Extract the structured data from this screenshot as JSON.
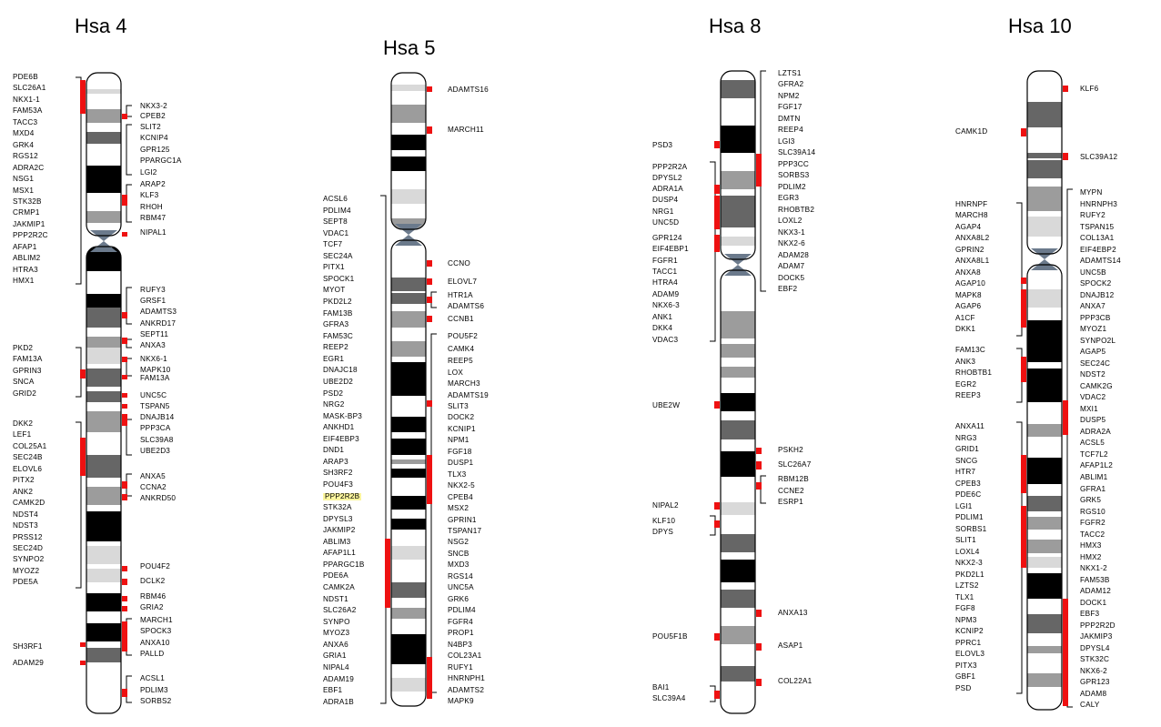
{
  "colors": {
    "marker": "#ee1111",
    "centromere": "#6b7a8c",
    "highlight": "#fbf59e",
    "band_light": "#d9d9d9",
    "band_medium": "#9c9c9c",
    "band_dark": "#666666",
    "band_black": "#000000"
  },
  "chromosomes": [
    {
      "title": "Hsa 4",
      "left_genes": [
        "PDE6B",
        "SLC26A1",
        "NKX1-1",
        "FAM53A",
        "TACC3",
        "MXD4",
        "GRK4",
        "RGS12",
        "ADRA2C",
        "NSG1",
        "MSX1",
        "STK32B",
        "CRMP1",
        "JAKMIP1",
        "PPP2R2C",
        "AFAP1",
        "ABLIM2",
        "HTRA3",
        "HMX1",
        "PKD2",
        "FAM13A",
        "GPRIN3",
        "SNCA",
        "GRID2",
        "DKK2",
        "LEF1",
        "COL25A1",
        "SEC24B",
        "ELOVL6",
        "PITX2",
        "ANK2",
        "CAMK2D",
        "NDST4",
        "NDST3",
        "PRSS12",
        "SEC24D",
        "SYNPO2",
        "MYOZ2",
        "PDE5A",
        "SH3RF1",
        "ADAM29"
      ],
      "right_genes": [
        "NKX3-2",
        "CPEB2",
        "SLIT2",
        "KCNIP4",
        "GPR125",
        "PPARGC1A",
        "LGI2",
        "ARAP2",
        "KLF3",
        "RHOH",
        "RBM47",
        "NIPAL1",
        "RUFY3",
        "GRSF1",
        "ADAMTS3",
        "ANKRD17",
        "SEPT11",
        "ANXA3",
        "NKX6-1",
        "MAPK10",
        "FAM13A",
        "UNC5C",
        "TSPAN5",
        "DNAJB14",
        "PPP3CA",
        "SLC39A8",
        "UBE2D3",
        "ANXA5",
        "CCNA2",
        "ANKRD50",
        "POU4F2",
        "DCLK2",
        "RBM46",
        "GRIA2",
        "MARCH1",
        "SPOCK3",
        "ANXA10",
        "PALLD",
        "ACSL1",
        "PDLIM3",
        "SORBS2"
      ]
    },
    {
      "title": "Hsa 5",
      "left_genes": [
        "ACSL6",
        "PDLIM4",
        "SEPT8",
        "VDAC1",
        "TCF7",
        "SEC24A",
        "PITX1",
        "SPOCK1",
        "MYOT",
        "PKD2L2",
        "FAM13B",
        "GFRA3",
        "FAM53C",
        "REEP2",
        "EGR1",
        "DNAJC18",
        "UBE2D2",
        "PSD2",
        "NRG2",
        "MASK-BP3",
        "ANKHD1",
        "EIF4EBP3",
        "DND1",
        "ARAP3",
        "SH3RF2",
        "POU4F3",
        "PPP2R2B",
        "STK32A",
        "DPYSL3",
        "JAKMIP2",
        "ABLIM3",
        "AFAP1L1",
        "PPARGC1B",
        "PDE6A",
        "CAMK2A",
        "NDST1",
        "SLC26A2",
        "SYNPO",
        "MYOZ3",
        "ANXA6",
        "GRIA1",
        "NIPAL4",
        "ADAM19",
        "EBF1",
        "ADRA1B"
      ],
      "right_genes": [
        "ADAMTS16",
        "MARCH11",
        "CCNO",
        "ELOVL7",
        "HTR1A",
        "ADAMTS6",
        "CCNB1",
        "POU5F2",
        "CAMK4",
        "REEP5",
        "LOX",
        "MARCH3",
        "ADAMTS19",
        "SLIT3",
        "DOCK2",
        "KCNIP1",
        "NPM1",
        "FGF18",
        "DUSP1",
        "TLX3",
        "NKX2-5",
        "CPEB4",
        "MSX2",
        "GPRIN1",
        "TSPAN17",
        "NSG2",
        "SNCB",
        "MXD3",
        "RGS14",
        "UNC5A",
        "GRK6",
        "PDLIM4",
        "FGFR4",
        "PROP1",
        "N4BP3",
        "COL23A1",
        "RUFY1",
        "HNRNPH1",
        "ADAMTS2",
        "MAPK9"
      ],
      "highlighted": "PPP2R2B"
    },
    {
      "title": "Hsa 8",
      "left_genes": [
        "PSD3",
        "PPP2R2A",
        "DPYSL2",
        "ADRA1A",
        "DUSP4",
        "NRG1",
        "UNC5D",
        "GPR124",
        "EIF4EBP1",
        "FGFR1",
        "TACC1",
        "HTRA4",
        "ADAM9",
        "NKX6-3",
        "ANK1",
        "DKK4",
        "VDAC3",
        "UBE2W",
        "NIPAL2",
        "KLF10",
        "DPYS",
        "POU5F1B",
        "BAI1",
        "SLC39A4"
      ],
      "right_genes": [
        "LZTS1",
        "GFRA2",
        "NPM2",
        "FGF17",
        "DMTN",
        "REEP4",
        "LGI3",
        "SLC39A14",
        "PPP3CC",
        "SORBS3",
        "PDLIM2",
        "EGR3",
        "RHOBTB2",
        "LOXL2",
        "NKX3-1",
        "NKX2-6",
        "ADAM28",
        "ADAM7",
        "DOCK5",
        "EBF2",
        "PSKH2",
        "SLC26A7",
        "RBM12B",
        "CCNE2",
        "ESRP1",
        "ANXA13",
        "ASAP1",
        "COL22A1"
      ]
    },
    {
      "title": "Hsa 10",
      "left_genes": [
        "CAMK1D",
        "HNRNPF",
        "MARCH8",
        "AGAP4",
        "ANXA8L2",
        "GPRIN2",
        "ANXA8L1",
        "ANXA8",
        "AGAP10",
        "MAPK8",
        "AGAP6",
        "A1CF",
        "DKK1",
        "FAM13C",
        "ANK3",
        "RHOBTB1",
        "EGR2",
        "REEP3",
        "ANXA11",
        "NRG3",
        "GRID1",
        "SNCG",
        "HTR7",
        "CPEB3",
        "PDE6C",
        "LGI1",
        "PDLIM1",
        "SORBS1",
        "SLIT1",
        "LOXL4",
        "NKX2-3",
        "PKD2L1",
        "LZTS2",
        "TLX1",
        "FGF8",
        "NPM3",
        "KCNIP2",
        "PPRC1",
        "ELOVL3",
        "PITX3",
        "GBF1",
        "PSD"
      ],
      "right_genes": [
        "KLF6",
        "SLC39A12",
        "MYPN",
        "HNRNPH3",
        "RUFY2",
        "TSPAN15",
        "COL13A1",
        "EIF4EBP2",
        "ADAMTS14",
        "UNC5B",
        "SPOCK2",
        "DNAJB12",
        "ANXA7",
        "PPP3CB",
        "MYOZ1",
        "SYNPO2L",
        "AGAP5",
        "SEC24C",
        "NDST2",
        "CAMK2G",
        "VDAC2",
        "MXI1",
        "DUSP5",
        "ADRA2A",
        "ACSL5",
        "TCF7L2",
        "AFAP1L2",
        "ABLIM1",
        "GFRA1",
        "GRK5",
        "RGS10",
        "FGFR2",
        "TACC2",
        "HMX3",
        "HMX2",
        "NKX1-2",
        "FAM53B",
        "ADAM12",
        "DOCK1",
        "EBF3",
        "PPP2R2D",
        "JAKMIP3",
        "DPYSL4",
        "STK32C",
        "NKX6-2",
        "GPR123",
        "ADAM8",
        "CALY"
      ]
    }
  ]
}
